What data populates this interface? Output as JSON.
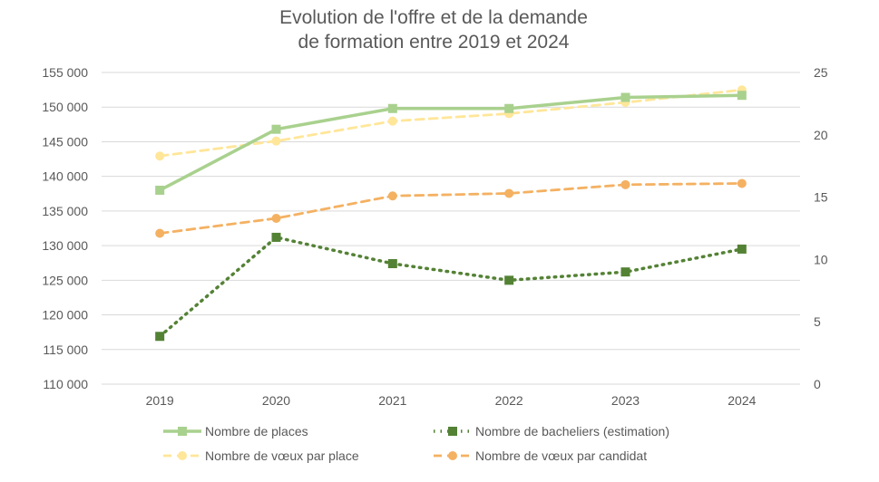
{
  "chart_data": {
    "type": "line",
    "title": [
      "Evolution de l'offre et de la demande",
      "de formation entre 2019 et 2024"
    ],
    "xlabel": "",
    "ylabel": "",
    "y2label": "",
    "categories": [
      "2019",
      "2020",
      "2021",
      "2022",
      "2023",
      "2024"
    ],
    "ylim": [
      110000,
      155000
    ],
    "y2lim": [
      0,
      25
    ],
    "yticks": [
      "110 000",
      "115 000",
      "120 000",
      "125 000",
      "130 000",
      "135 000",
      "140 000",
      "145 000",
      "150 000",
      "155 000"
    ],
    "ytick_values": [
      110000,
      115000,
      120000,
      125000,
      130000,
      135000,
      140000,
      145000,
      150000,
      155000
    ],
    "y2ticks": [
      "0",
      "5",
      "10",
      "15",
      "20",
      "25"
    ],
    "y2tick_values": [
      0,
      5,
      10,
      15,
      20,
      25
    ],
    "grid": true,
    "legend_position": "bottom",
    "series": [
      {
        "name": "Nombre de places",
        "axis": "left",
        "color": "#a9d18e",
        "style": "solid",
        "marker": "square",
        "values": [
          138000,
          146800,
          149800,
          149800,
          151400,
          151700
        ]
      },
      {
        "name": "Nombre de bacheliers (estimation)",
        "axis": "left",
        "color": "#548235",
        "style": "dotted",
        "marker": "square",
        "values": [
          116900,
          131200,
          127400,
          125000,
          126200,
          129500
        ]
      },
      {
        "name": "Nombre de vœux par place",
        "axis": "right",
        "color": "#ffe699",
        "style": "dashed",
        "marker": "circle",
        "values": [
          18.3,
          19.5,
          21.1,
          21.7,
          22.6,
          23.6
        ]
      },
      {
        "name": "Nombre de vœux par candidat",
        "axis": "right",
        "color": "#f4b162",
        "style": "dashed",
        "marker": "circle",
        "values": [
          12.1,
          13.3,
          15.1,
          15.3,
          16.0,
          16.1
        ]
      }
    ]
  }
}
